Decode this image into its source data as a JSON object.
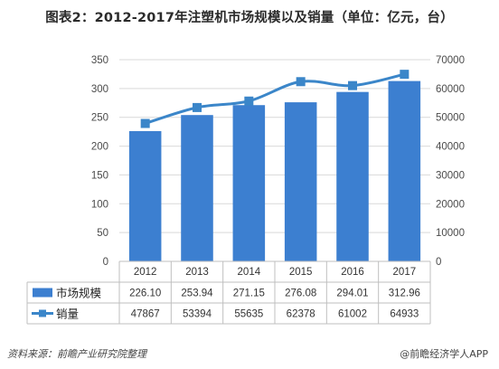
{
  "header": {
    "title": "图表2：2012-2017年注塑机市场规模以及销量（单位：亿元，台）"
  },
  "footer": {
    "source": "资料来源：前瞻产业研究院整理",
    "credit": "@前瞻经济学人APP"
  },
  "colors": {
    "bar": "#3c7fd0",
    "line": "#3b86c9",
    "grid": "#d9d9d9",
    "table_border": "#bfbfbf"
  },
  "chart_data": {
    "type": "bar",
    "categories": [
      "2012",
      "2013",
      "2014",
      "2015",
      "2016",
      "2017"
    ],
    "series": [
      {
        "name": "市场规模",
        "type": "bar",
        "axis": "left",
        "values": [
          226.1,
          253.94,
          271.15,
          276.08,
          294.01,
          312.96
        ],
        "labels": [
          "226.10",
          "253.94",
          "271.15",
          "276.08",
          "294.01",
          "312.96"
        ]
      },
      {
        "name": "销量",
        "type": "line",
        "axis": "right",
        "values": [
          47867,
          53394,
          55635,
          62378,
          61002,
          64933
        ],
        "labels": [
          "47867",
          "53394",
          "55635",
          "62378",
          "61002",
          "64933"
        ]
      }
    ],
    "ylim": [
      0,
      350
    ],
    "yticks": [
      0,
      50,
      100,
      150,
      200,
      250,
      300,
      350
    ],
    "y2lim": [
      0,
      70000
    ],
    "y2ticks": [
      0,
      10000,
      20000,
      30000,
      40000,
      50000,
      60000,
      70000
    ],
    "grid": true,
    "legend": "data-table"
  }
}
